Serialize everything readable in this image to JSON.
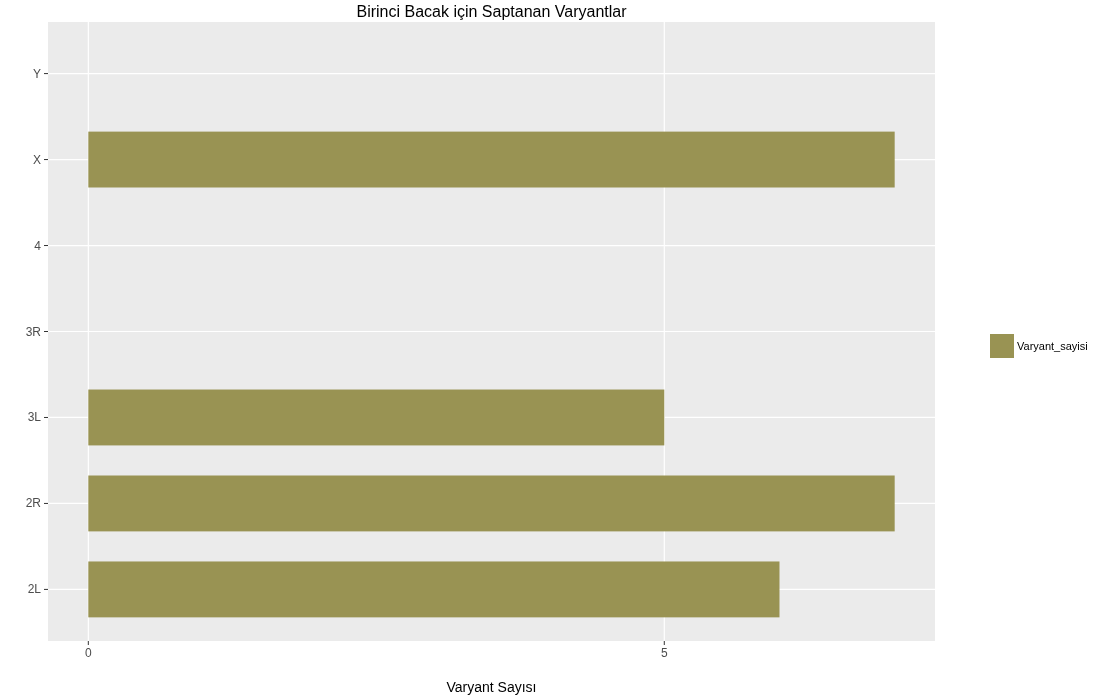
{
  "chart_data": {
    "type": "bar",
    "title": "Birinci Bacak için Saptanan Varyantlar",
    "xlabel": "Varyant Sayısı",
    "orientation": "horizontal",
    "categories": [
      "Y",
      "X",
      "4",
      "3R",
      "3L",
      "2R",
      "2L"
    ],
    "series": [
      {
        "name": "Varyant_sayisi",
        "color": "#999353",
        "values": [
          0,
          7,
          0,
          0,
          5,
          7,
          6
        ]
      }
    ],
    "xlim": [
      -0.35,
      7.35
    ],
    "xticks": [
      0,
      5
    ],
    "grid": true,
    "legend": "right"
  }
}
